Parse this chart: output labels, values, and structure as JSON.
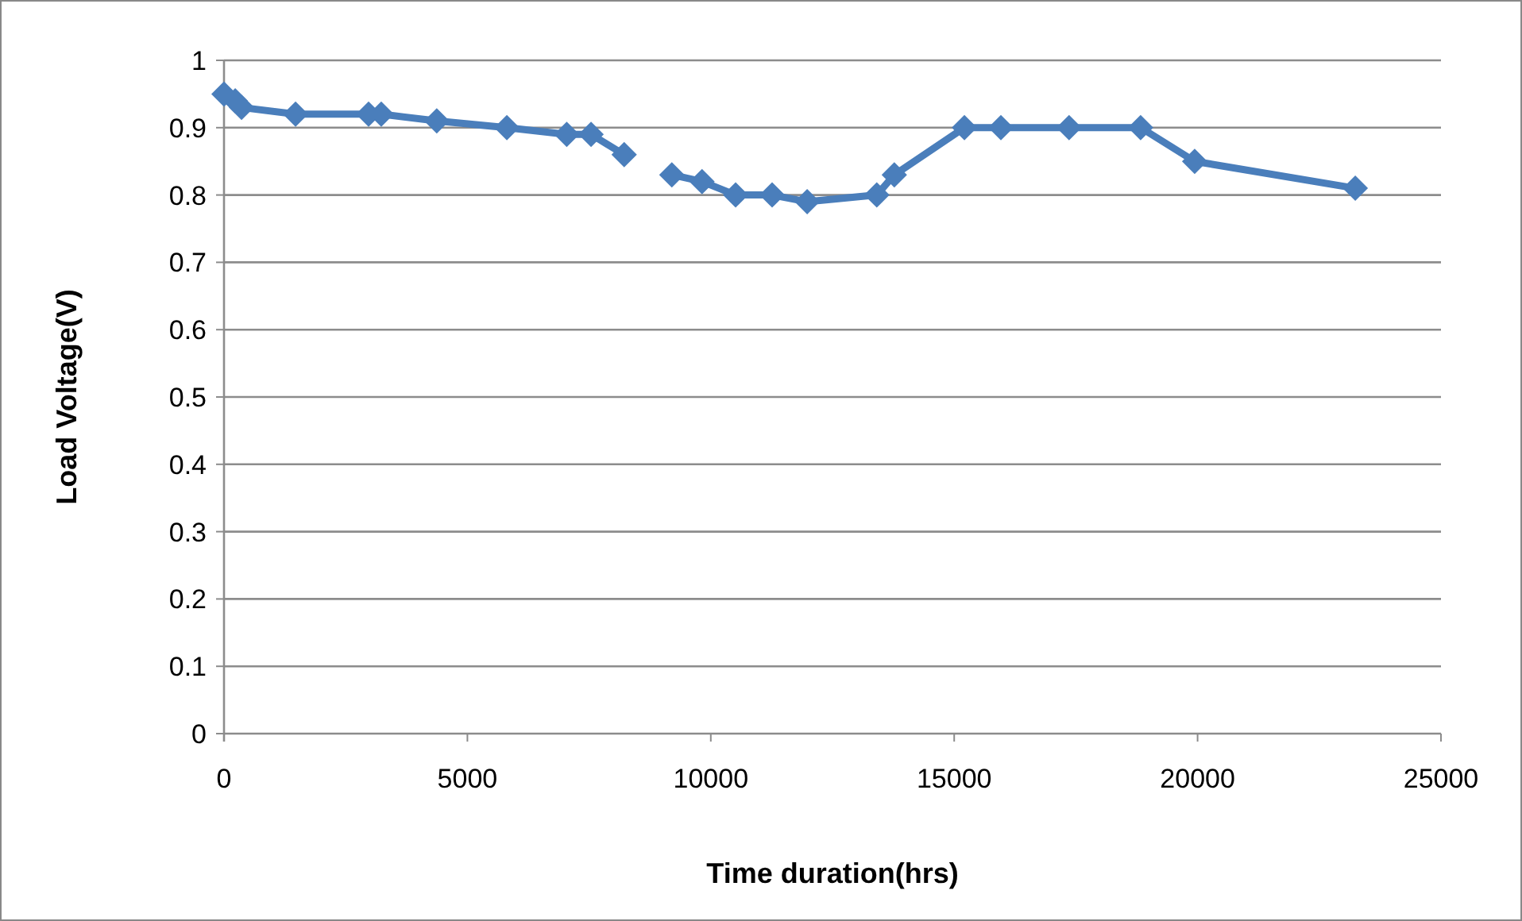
{
  "chart_data": {
    "type": "line",
    "xlabel": "Time duration(hrs)",
    "ylabel": "Load Voltage(V)",
    "x": [
      0,
      230,
      360,
      1470,
      2970,
      3230,
      4370,
      5810,
      7040,
      7540,
      8220,
      8700,
      9200,
      9820,
      10510,
      11260,
      11980,
      13410,
      13770,
      15210,
      15960,
      17360,
      18830,
      19940,
      23240
    ],
    "series": [
      {
        "color": "#4a7ebb",
        "values": [
          0.95,
          0.94,
          0.93,
          0.92,
          0.92,
          0.92,
          0.91,
          0.9,
          0.89,
          0.89,
          0.86,
          null,
          0.83,
          0.82,
          0.8,
          0.8,
          0.79,
          0.8,
          0.83,
          0.9,
          0.9,
          0.9,
          0.9,
          0.85,
          0.81
        ]
      }
    ],
    "xlim": [
      0,
      25000
    ],
    "xticks": [
      0,
      5000,
      10000,
      15000,
      20000,
      25000
    ],
    "ylim": [
      0,
      1
    ],
    "yticks": [
      0,
      0.1,
      0.2,
      0.3,
      0.4,
      0.5,
      0.6,
      0.7,
      0.8,
      0.9,
      1
    ],
    "grid": "y",
    "marker": "diamond",
    "line_style": "solid"
  }
}
